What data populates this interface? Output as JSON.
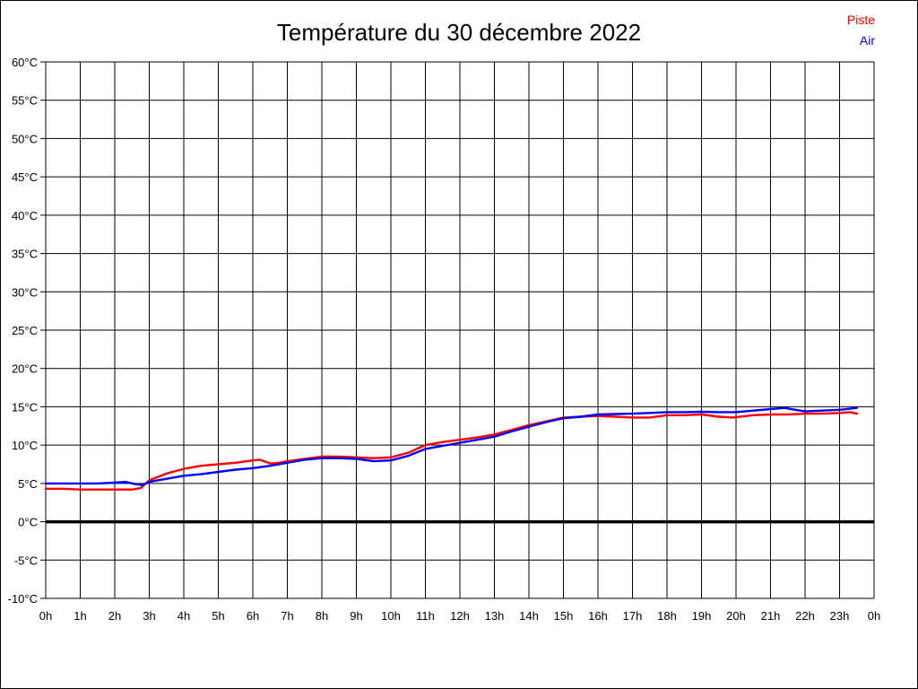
{
  "page": {
    "background": "#ffffff",
    "border_color": "#000000"
  },
  "header": {
    "title": "Température du 30 décembre 2022"
  },
  "legend": {
    "position": "top-right",
    "entries": [
      {
        "label": "Piste",
        "color": "#ff0000"
      },
      {
        "label": "Air",
        "color": "#0000ff"
      }
    ]
  },
  "chart_data": {
    "type": "line",
    "title": "Température du 30 décembre 2022",
    "xlabel": "",
    "ylabel": "",
    "xlim_hours": [
      0,
      24
    ],
    "ylim": [
      -10,
      60
    ],
    "ytick_step": 5,
    "ytick_suffix": "°C",
    "xtick_labels": [
      "0h",
      "1h",
      "2h",
      "3h",
      "4h",
      "5h",
      "6h",
      "7h",
      "8h",
      "9h",
      "10h",
      "11h",
      "12h",
      "13h",
      "14h",
      "15h",
      "16h",
      "17h",
      "18h",
      "19h",
      "20h",
      "21h",
      "22h",
      "23h",
      "0h"
    ],
    "grid": true,
    "grid_color": "#000000",
    "zero_line_bold": true,
    "tick_label_color": "#000000",
    "series": [
      {
        "name": "Piste",
        "color": "#ff0000",
        "points": [
          [
            0,
            4.3
          ],
          [
            0.5,
            4.3
          ],
          [
            1,
            4.2
          ],
          [
            1.5,
            4.2
          ],
          [
            2,
            4.2
          ],
          [
            2.5,
            4.2
          ],
          [
            2.75,
            4.4
          ],
          [
            3,
            5.4
          ],
          [
            3.5,
            6.3
          ],
          [
            4,
            6.9
          ],
          [
            4.5,
            7.3
          ],
          [
            5,
            7.5
          ],
          [
            5.5,
            7.7
          ],
          [
            6,
            8.0
          ],
          [
            6.2,
            8.1
          ],
          [
            6.5,
            7.6
          ],
          [
            6.75,
            7.7
          ],
          [
            7,
            7.9
          ],
          [
            7.5,
            8.2
          ],
          [
            8,
            8.5
          ],
          [
            8.5,
            8.5
          ],
          [
            9,
            8.4
          ],
          [
            9.5,
            8.3
          ],
          [
            10,
            8.4
          ],
          [
            10.5,
            9.0
          ],
          [
            11,
            10.0
          ],
          [
            11.5,
            10.4
          ],
          [
            12,
            10.7
          ],
          [
            12.5,
            11.0
          ],
          [
            13,
            11.4
          ],
          [
            13.5,
            12.0
          ],
          [
            14,
            12.6
          ],
          [
            14.5,
            13.1
          ],
          [
            15,
            13.6
          ],
          [
            15.5,
            13.7
          ],
          [
            16,
            13.8
          ],
          [
            16.5,
            13.7
          ],
          [
            17,
            13.6
          ],
          [
            17.5,
            13.6
          ],
          [
            18,
            13.9
          ],
          [
            18.5,
            13.9
          ],
          [
            19,
            14.0
          ],
          [
            19.5,
            13.7
          ],
          [
            19.9,
            13.6
          ],
          [
            20.5,
            13.9
          ],
          [
            21,
            14.0
          ],
          [
            21.5,
            14.0
          ],
          [
            22,
            14.1
          ],
          [
            22.5,
            14.1
          ],
          [
            23,
            14.2
          ],
          [
            23.3,
            14.3
          ],
          [
            23.5,
            14.1
          ]
        ]
      },
      {
        "name": "Air",
        "color": "#0000ff",
        "points": [
          [
            0,
            5.0
          ],
          [
            0.5,
            5.0
          ],
          [
            1,
            5.0
          ],
          [
            1.5,
            5.0
          ],
          [
            2,
            5.1
          ],
          [
            2.3,
            5.2
          ],
          [
            2.6,
            4.9
          ],
          [
            2.8,
            4.8
          ],
          [
            3,
            5.2
          ],
          [
            3.5,
            5.6
          ],
          [
            4,
            6.0
          ],
          [
            4.5,
            6.2
          ],
          [
            5,
            6.5
          ],
          [
            5.5,
            6.8
          ],
          [
            6,
            7.0
          ],
          [
            6.5,
            7.3
          ],
          [
            7,
            7.7
          ],
          [
            7.5,
            8.1
          ],
          [
            8,
            8.3
          ],
          [
            8.5,
            8.3
          ],
          [
            9,
            8.2
          ],
          [
            9.5,
            7.9
          ],
          [
            10,
            8.0
          ],
          [
            10.5,
            8.6
          ],
          [
            11,
            9.5
          ],
          [
            11.5,
            9.9
          ],
          [
            12,
            10.3
          ],
          [
            12.5,
            10.7
          ],
          [
            13,
            11.1
          ],
          [
            13.5,
            11.8
          ],
          [
            14,
            12.4
          ],
          [
            14.5,
            13.0
          ],
          [
            15,
            13.5
          ],
          [
            15.5,
            13.7
          ],
          [
            16,
            14.0
          ],
          [
            16.5,
            14.05
          ],
          [
            17,
            14.1
          ],
          [
            17.5,
            14.2
          ],
          [
            18,
            14.3
          ],
          [
            18.5,
            14.3
          ],
          [
            19,
            14.35
          ],
          [
            19.5,
            14.3
          ],
          [
            20,
            14.3
          ],
          [
            20.5,
            14.5
          ],
          [
            21,
            14.7
          ],
          [
            21.4,
            14.85
          ],
          [
            22,
            14.4
          ],
          [
            22.5,
            14.5
          ],
          [
            23,
            14.6
          ],
          [
            23.5,
            14.85
          ]
        ]
      }
    ]
  }
}
